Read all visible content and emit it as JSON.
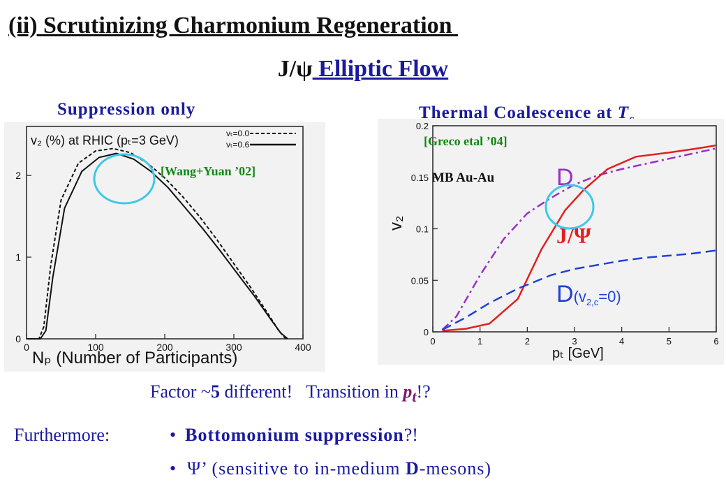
{
  "slide": {
    "title": "(ii) Scrutinizing Charmonium Regeneration ",
    "subtitle_jpsi": "J/ψ",
    "subtitle_rest": " Elliptic Flow",
    "left_heading": "Suppression only",
    "right_heading_text": "Thermal Coalescence at ",
    "right_heading_T": "T",
    "right_heading_sub": "c"
  },
  "left_panel": {
    "ref": "[Wang+Yuan ’02]",
    "inner_title": "v₂ (%) at RHIC (pₜ=3 GeV)",
    "legend": [
      "vₜ=0.0",
      "vₜ=0.6"
    ],
    "xlabel": "Nₚ (Number of Participants)"
  },
  "right_panel": {
    "ref": "[Greco etal ’04]",
    "mb_label": "MB Au-Au",
    "label_D": "D",
    "label_jpsi": "J/Ψ",
    "label_D0_main": "D",
    "label_D0_paren": "(v",
    "label_D0_sub": "2,c",
    "label_D0_end": "=0)",
    "ylabel": "v₂",
    "xlabel": "pₜ [GeV]"
  },
  "chart_data": [
    {
      "type": "line",
      "title": "v2 (%) at RHIC (pT=3 GeV)",
      "xlabel": "NP (Number of Participants)",
      "ylabel": "",
      "xlim": [
        0,
        400
      ],
      "ylim": [
        0,
        2.6
      ],
      "xticks": [
        0,
        100,
        200,
        300,
        400
      ],
      "yticks": [
        0,
        1,
        2
      ],
      "legend_position": "top-right",
      "series": [
        {
          "name": "vt=0.0",
          "style": "dashed",
          "x": [
            0,
            18,
            25,
            35,
            50,
            75,
            100,
            125,
            150,
            175,
            200,
            225,
            250,
            275,
            300,
            325,
            350,
            365,
            375
          ],
          "y": [
            0,
            0,
            0.15,
            0.9,
            1.7,
            2.15,
            2.3,
            2.33,
            2.28,
            2.15,
            1.97,
            1.75,
            1.5,
            1.22,
            0.92,
            0.62,
            0.3,
            0.1,
            0
          ]
        },
        {
          "name": "vt=0.6",
          "style": "solid",
          "x": [
            0,
            20,
            28,
            38,
            55,
            80,
            105,
            130,
            155,
            180,
            205,
            230,
            255,
            280,
            305,
            330,
            355,
            368,
            378
          ],
          "y": [
            0,
            0,
            0.1,
            0.75,
            1.6,
            2.05,
            2.22,
            2.27,
            2.2,
            2.05,
            1.85,
            1.6,
            1.35,
            1.08,
            0.8,
            0.52,
            0.22,
            0.07,
            0
          ]
        }
      ]
    },
    {
      "type": "line",
      "title": "",
      "xlabel": "pT [GeV]",
      "ylabel": "v2",
      "xlim": [
        0,
        6
      ],
      "ylim": [
        0,
        0.2
      ],
      "xticks": [
        0,
        1,
        2,
        3,
        4,
        5,
        6
      ],
      "yticks": [
        0,
        0.05,
        0.1,
        0.15,
        0.2
      ],
      "series": [
        {
          "name": "D",
          "style": "dash-dot",
          "color": "#9a2ec8",
          "x": [
            0.2,
            0.5,
            1.0,
            1.5,
            2.0,
            2.5,
            3.0,
            3.5,
            4.0,
            4.5,
            5.0,
            5.5,
            6.0
          ],
          "y": [
            0.002,
            0.015,
            0.055,
            0.09,
            0.115,
            0.13,
            0.143,
            0.152,
            0.158,
            0.163,
            0.168,
            0.173,
            0.178
          ]
        },
        {
          "name": "J/Ψ",
          "style": "solid",
          "color": "#e02020",
          "x": [
            0.2,
            0.7,
            1.2,
            1.8,
            2.3,
            2.8,
            3.2,
            3.7,
            4.3,
            5.0,
            5.6,
            6.0
          ],
          "y": [
            0.001,
            0.003,
            0.008,
            0.032,
            0.08,
            0.118,
            0.138,
            0.158,
            0.17,
            0.174,
            0.178,
            0.181
          ]
        },
        {
          "name": "D(v2,c=0)",
          "style": "dashed",
          "color": "#2040d8",
          "x": [
            0.2,
            0.7,
            1.2,
            1.8,
            2.5,
            3.0,
            3.5,
            4.0,
            4.5,
            5.0,
            5.5,
            6.0
          ],
          "y": [
            0.002,
            0.014,
            0.028,
            0.042,
            0.055,
            0.061,
            0.065,
            0.069,
            0.072,
            0.074,
            0.076,
            0.079
          ]
        }
      ]
    }
  ],
  "bottom": {
    "factor_pre": "Factor ~",
    "factor_num": "5",
    "factor_post": " different!   Transition in ",
    "factor_pt": "p",
    "factor_pt_sub": "t",
    "factor_end": "!?",
    "furthermore": "Furthermore:",
    "bullet1_bold": "Bottomonium suppression",
    "bullet1_end": "?!",
    "bullet2_pre": "Ψ’ (sensitive to in-medium ",
    "bullet2_bold": "D",
    "bullet2_end": "-mesons)"
  }
}
